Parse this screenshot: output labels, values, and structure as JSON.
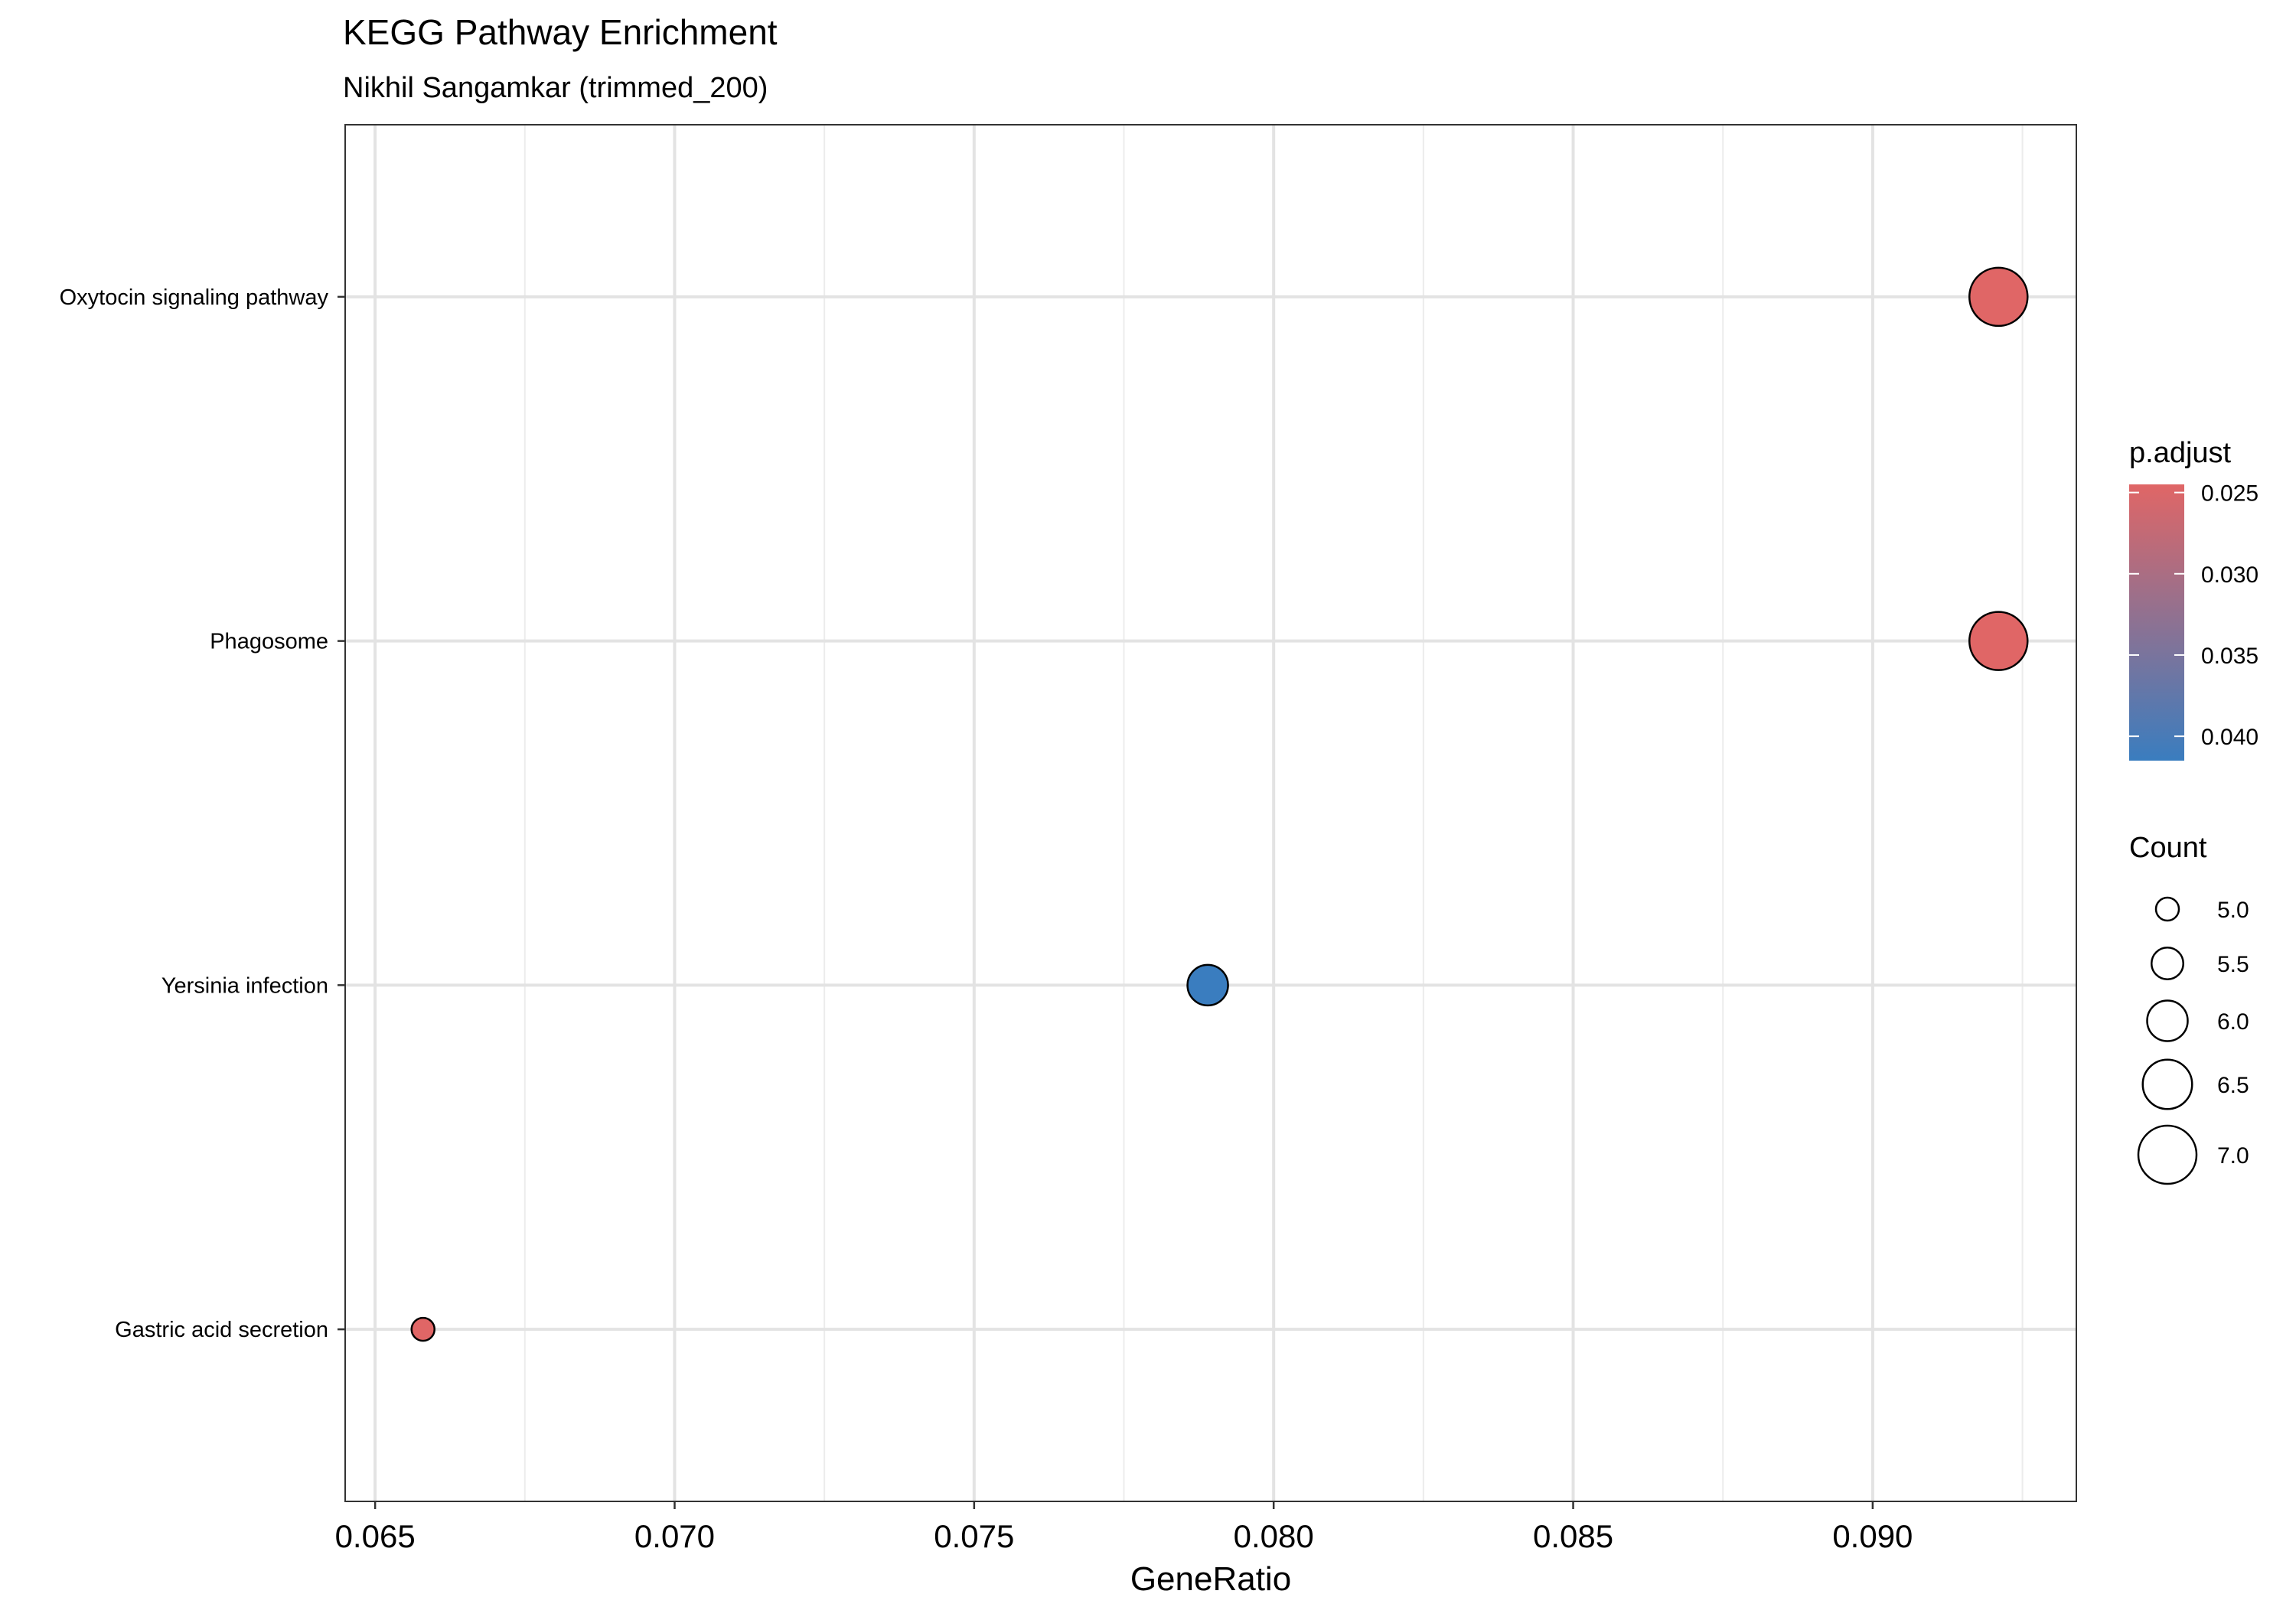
{
  "chart_data": {
    "type": "scatter",
    "title": "KEGG Pathway Enrichment",
    "subtitle": "Nikhil Sangamkar (trimmed_200)",
    "xlabel": "GeneRatio",
    "ylabel": "",
    "xlim": [
      0.0645,
      0.0934
    ],
    "x_ticks": [
      "0.065",
      "0.070",
      "0.075",
      "0.080",
      "0.085",
      "0.090"
    ],
    "grid": true,
    "legend_position": "right",
    "categories": [
      "Oxytocin signaling pathway",
      "Phagosome",
      "Yersinia infection",
      "Gastric acid secretion"
    ],
    "points": [
      {
        "category": "Oxytocin signaling pathway",
        "gene_ratio": 0.0921,
        "count": 7,
        "p_adjust": 0.0245
      },
      {
        "category": "Phagosome",
        "gene_ratio": 0.0921,
        "count": 7,
        "p_adjust": 0.0245
      },
      {
        "category": "Yersinia infection",
        "gene_ratio": 0.0789,
        "count": 6,
        "p_adjust": 0.0415
      },
      {
        "category": "Gastric acid secretion",
        "gene_ratio": 0.0658,
        "count": 5,
        "p_adjust": 0.0245
      }
    ],
    "color_legend": {
      "title": "p.adjust",
      "range": [
        0.0245,
        0.0415
      ],
      "ticks": [
        "0.025",
        "0.030",
        "0.035",
        "0.040"
      ],
      "low_color": "#e06666",
      "high_color": "#3a7dbf"
    },
    "size_legend": {
      "title": "Count",
      "range": [
        5,
        7
      ],
      "ticks": [
        "5.0",
        "5.5",
        "6.0",
        "6.5",
        "7.0"
      ]
    }
  }
}
